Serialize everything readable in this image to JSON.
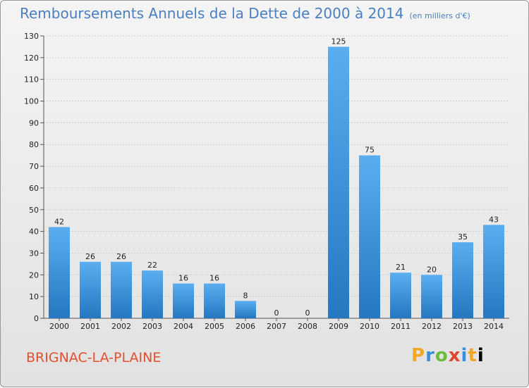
{
  "header": {
    "title": "Remboursements Annuels de la Dette de 2000 à 2014",
    "unit": "(en milliers d'€)"
  },
  "footer": {
    "city": "BRIGNAC-LA-PLAINE",
    "brand_letters": [
      "P",
      "r",
      "o",
      "x",
      "i",
      "t",
      "i"
    ]
  },
  "colors": {
    "bar_top": "#5aaef0",
    "bar_bottom": "#2577c0",
    "grid": "#cfcfcf"
  },
  "chart_data": {
    "type": "bar",
    "title": "Remboursements Annuels de la Dette de 2000 à 2014",
    "categories": [
      "2000",
      "2001",
      "2002",
      "2003",
      "2004",
      "2005",
      "2006",
      "2007",
      "2008",
      "2009",
      "2010",
      "2011",
      "2012",
      "2013",
      "2014"
    ],
    "values": [
      42,
      26,
      26,
      22,
      16,
      16,
      8,
      0,
      0,
      125,
      75,
      21,
      20,
      35,
      43
    ],
    "ylim": [
      0,
      130
    ],
    "yticks": [
      0,
      10,
      20,
      30,
      40,
      50,
      60,
      70,
      80,
      90,
      100,
      110,
      120,
      130
    ],
    "grid": true
  }
}
